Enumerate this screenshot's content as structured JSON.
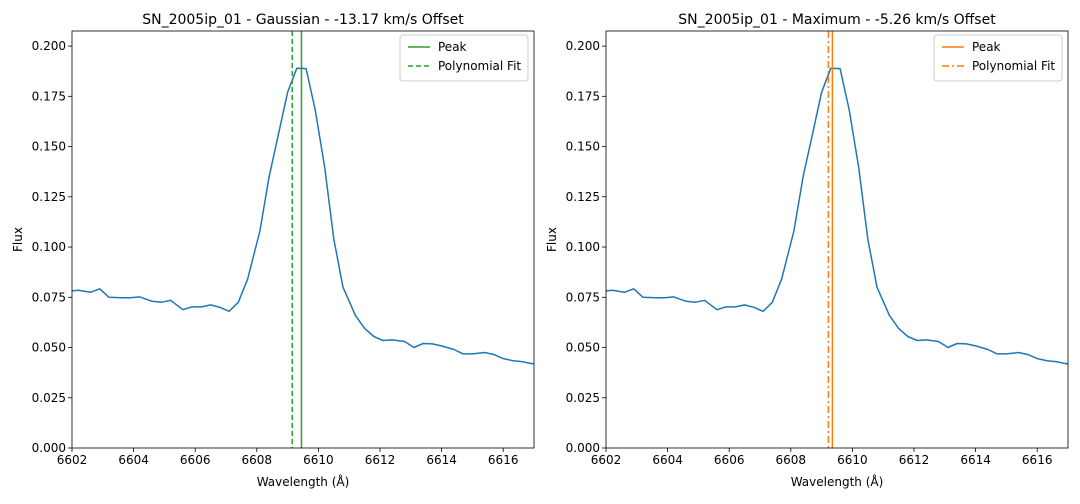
{
  "chart_data": [
    {
      "type": "line",
      "title": "SN_2005ip_01 - Gaussian - -13.17 km/s Offset",
      "xlabel": "Wavelength (Å)",
      "ylabel": "Flux",
      "xlim": [
        6602,
        6617
      ],
      "ylim": [
        0.0,
        0.2075
      ],
      "xticks": [
        "6602",
        "6604",
        "6606",
        "6608",
        "6610",
        "6612",
        "6614",
        "6616"
      ],
      "yticks": [
        "0.000",
        "0.025",
        "0.050",
        "0.075",
        "0.100",
        "0.125",
        "0.150",
        "0.175",
        "0.200"
      ],
      "grid": false,
      "legend_position": "top-right",
      "x": [
        6601.9,
        6602.2,
        6602.6,
        6602.9,
        6603.2,
        6603.6,
        6603.9,
        6604.2,
        6604.6,
        6604.9,
        6605.2,
        6605.6,
        6605.9,
        6606.2,
        6606.5,
        6606.8,
        6607.1,
        6607.4,
        6607.7,
        6608.1,
        6608.4,
        6608.7,
        6609.0,
        6609.3,
        6609.6,
        6609.9,
        6610.2,
        6610.5,
        6610.8,
        6611.2,
        6611.5,
        6611.8,
        6612.1,
        6612.4,
        6612.8,
        6613.1,
        6613.4,
        6613.7,
        6614.0,
        6614.4,
        6614.7,
        6615.0,
        6615.4,
        6615.7,
        6616.0,
        6616.3,
        6616.6,
        6617.0
      ],
      "series": [
        {
          "color": "#1f77b4",
          "values": [
            0.078,
            0.0785,
            0.0775,
            0.0792,
            0.075,
            0.0748,
            0.0748,
            0.0752,
            0.073,
            0.0725,
            0.0735,
            0.0688,
            0.0702,
            0.0702,
            0.0712,
            0.07,
            0.068,
            0.0725,
            0.084,
            0.108,
            0.135,
            0.156,
            0.177,
            0.189,
            0.1888,
            0.168,
            0.14,
            0.104,
            0.08,
            0.066,
            0.0595,
            0.0555,
            0.0535,
            0.0538,
            0.053,
            0.05,
            0.052,
            0.0518,
            0.0508,
            0.049,
            0.0468,
            0.0468,
            0.0475,
            0.0465,
            0.0445,
            0.0435,
            0.043,
            0.0418
          ]
        }
      ],
      "vlines": [
        {
          "name": "Peak",
          "x": 6609.45,
          "color": "#2ca02c",
          "style": "solid"
        },
        {
          "name": "Polynomial Fit",
          "x": 6609.15,
          "color": "#2ca02c",
          "style": "dashed"
        }
      ]
    },
    {
      "type": "line",
      "title": "SN_2005ip_01 - Maximum - -5.26 km/s Offset",
      "xlabel": "Wavelength (Å)",
      "ylabel": "Flux",
      "xlim": [
        6602,
        6617
      ],
      "ylim": [
        0.0,
        0.2075
      ],
      "xticks": [
        "6602",
        "6604",
        "6606",
        "6608",
        "6610",
        "6612",
        "6614",
        "6616"
      ],
      "yticks": [
        "0.000",
        "0.025",
        "0.050",
        "0.075",
        "0.100",
        "0.125",
        "0.150",
        "0.175",
        "0.200"
      ],
      "grid": false,
      "legend_position": "top-right",
      "x": [
        6601.9,
        6602.2,
        6602.6,
        6602.9,
        6603.2,
        6603.6,
        6603.9,
        6604.2,
        6604.6,
        6604.9,
        6605.2,
        6605.6,
        6605.9,
        6606.2,
        6606.5,
        6606.8,
        6607.1,
        6607.4,
        6607.7,
        6608.1,
        6608.4,
        6608.7,
        6609.0,
        6609.3,
        6609.6,
        6609.9,
        6610.2,
        6610.5,
        6610.8,
        6611.2,
        6611.5,
        6611.8,
        6612.1,
        6612.4,
        6612.8,
        6613.1,
        6613.4,
        6613.7,
        6614.0,
        6614.4,
        6614.7,
        6615.0,
        6615.4,
        6615.7,
        6616.0,
        6616.3,
        6616.6,
        6617.0
      ],
      "series": [
        {
          "color": "#1f77b4",
          "values": [
            0.078,
            0.0785,
            0.0775,
            0.0792,
            0.075,
            0.0748,
            0.0748,
            0.0752,
            0.073,
            0.0725,
            0.0735,
            0.0688,
            0.0702,
            0.0702,
            0.0712,
            0.07,
            0.068,
            0.0725,
            0.084,
            0.108,
            0.135,
            0.156,
            0.177,
            0.189,
            0.1888,
            0.168,
            0.14,
            0.104,
            0.08,
            0.066,
            0.0595,
            0.0555,
            0.0535,
            0.0538,
            0.053,
            0.05,
            0.052,
            0.0518,
            0.0508,
            0.049,
            0.0468,
            0.0468,
            0.0475,
            0.0465,
            0.0445,
            0.0435,
            0.043,
            0.0418
          ]
        }
      ],
      "vlines": [
        {
          "name": "Peak",
          "x": 6609.35,
          "color": "#ff7f0e",
          "style": "solid"
        },
        {
          "name": "Polynomial Fit",
          "x": 6609.22,
          "color": "#ff7f0e",
          "style": "dashdot"
        }
      ]
    }
  ]
}
